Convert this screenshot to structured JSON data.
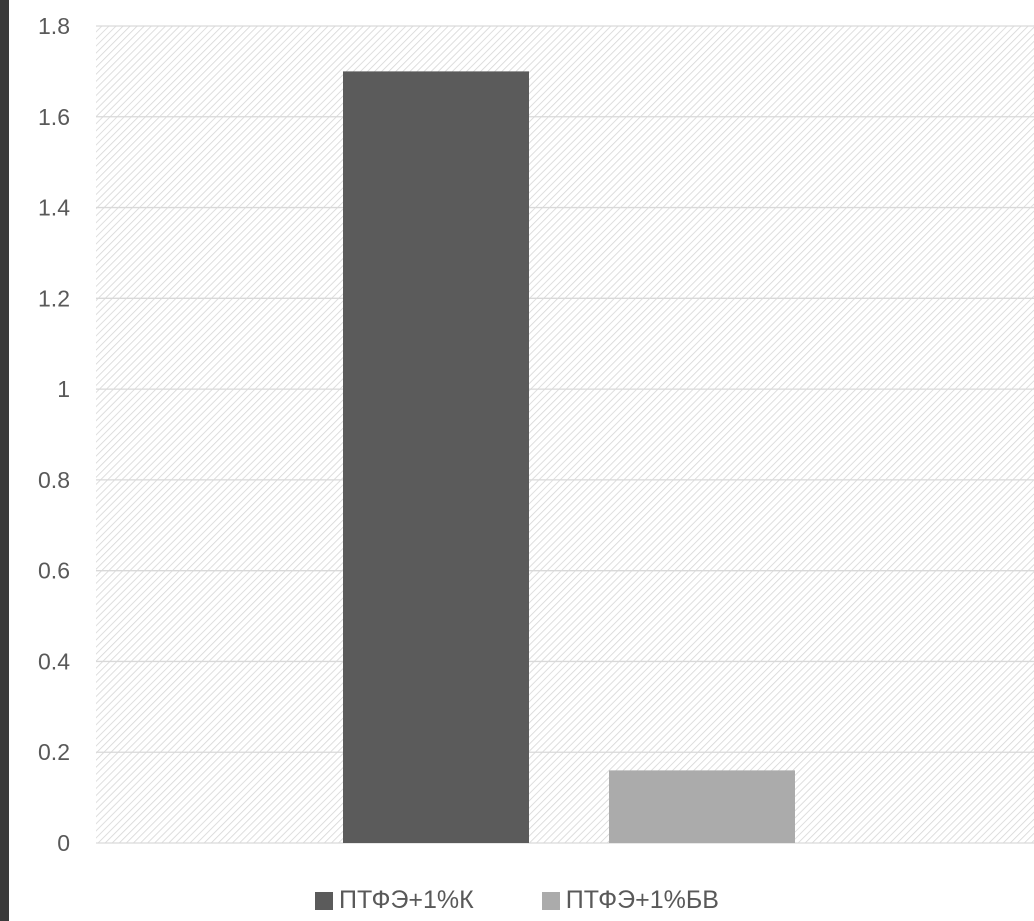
{
  "chart_data": {
    "type": "bar",
    "title": "",
    "xlabel": "",
    "ylabel": "",
    "ylim": [
      0,
      1.8
    ],
    "yticks": [
      "0",
      "0.2",
      "0.4",
      "0.6",
      "0.8",
      "1",
      "1.2",
      "1.4",
      "1.6",
      "1.8"
    ],
    "grid": true,
    "legend_position": "bottom",
    "series": [
      {
        "name": "ПТФЭ+1%К",
        "value": 1.7,
        "color": "#5b5b5b"
      },
      {
        "name": "ПТФЭ+1%БВ",
        "value": 0.16,
        "color": "#ababab"
      }
    ]
  },
  "colors": {
    "gridline": "#d9d9d9",
    "tick_text": "#595959",
    "plot_hatch": "#d6d6d6"
  }
}
